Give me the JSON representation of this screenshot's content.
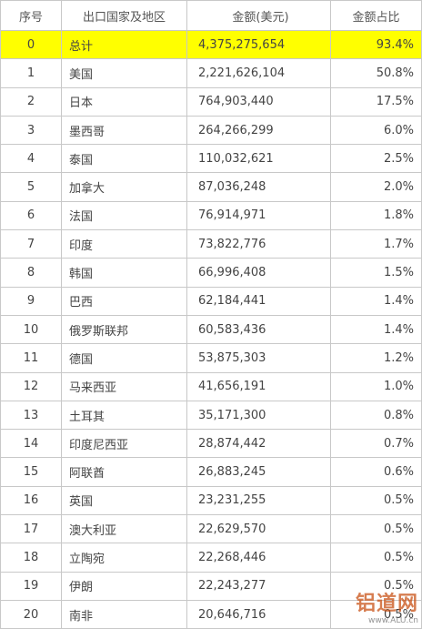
{
  "table": {
    "header": [
      "序号",
      "出口国家及地区",
      "金额(美元)",
      "金额占比"
    ],
    "rows": [
      [
        "0",
        "总计",
        "4,375,275,654",
        "93.4%"
      ],
      [
        "1",
        "美国",
        "2,221,626,104",
        "50.8%"
      ],
      [
        "2",
        "日本",
        "764,903,440",
        "17.5%"
      ],
      [
        "3",
        "墨西哥",
        "264,266,299",
        "6.0%"
      ],
      [
        "4",
        "泰国",
        "110,032,621",
        "2.5%"
      ],
      [
        "5",
        "加拿大",
        "87,036,248",
        "2.0%"
      ],
      [
        "6",
        "法国",
        "76,914,971",
        "1.8%"
      ],
      [
        "7",
        "印度",
        "73,822,776",
        "1.7%"
      ],
      [
        "8",
        "韩国",
        "66,996,408",
        "1.5%"
      ],
      [
        "9",
        "巴西",
        "62,184,441",
        "1.4%"
      ],
      [
        "10",
        "俄罗斯联邦",
        "60,583,436",
        "1.4%"
      ],
      [
        "11",
        "德国",
        "53,875,303",
        "1.2%"
      ],
      [
        "12",
        "马来西亚",
        "41,656,191",
        "1.0%"
      ],
      [
        "13",
        "土耳其",
        "35,171,300",
        "0.8%"
      ],
      [
        "14",
        "印度尼西亚",
        "28,874,442",
        "0.7%"
      ],
      [
        "15",
        "阿联酋",
        "26,883,245",
        "0.6%"
      ],
      [
        "16",
        "英国",
        "23,231,255",
        "0.5%"
      ],
      [
        "17",
        "澳大利亚",
        "22,629,570",
        "0.5%"
      ],
      [
        "18",
        "立陶宛",
        "22,268,446",
        "0.5%"
      ],
      [
        "19",
        "伊朗",
        "22,243,277",
        "0.5%"
      ],
      [
        "20",
        "南非",
        "20,646,716",
        "0.5%"
      ]
    ]
  },
  "watermark": {
    "name": "铝道网",
    "url": "www.ALU.cn"
  }
}
